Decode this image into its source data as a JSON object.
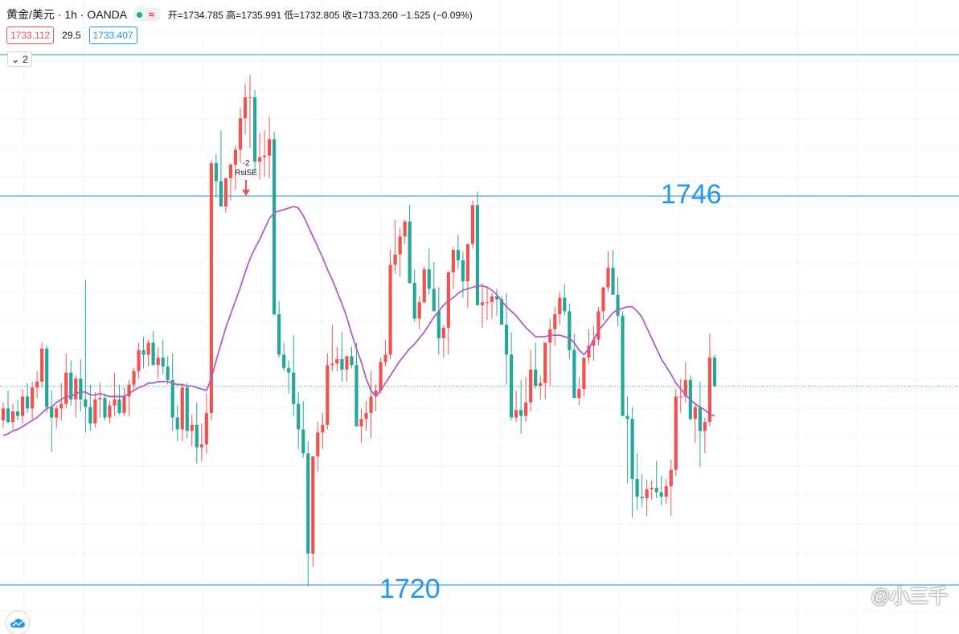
{
  "header": {
    "symbol": "黄金/美元 · 1h · OANDA",
    "approx_icon": "≈",
    "ohlc_text": "开=1734.785 高=1735.991 低=1732.805 收=1733.260 −1.525 (−0.09%)"
  },
  "quotes": {
    "bid": "1733.112",
    "spread": "29.5",
    "ask": "1733.407"
  },
  "collapse_count": "2",
  "annotations": {
    "level_high": "1746",
    "level_low": "1720",
    "signal_count": "-2",
    "signal_name": "RsiSE"
  },
  "watermark": "@小三千",
  "colors": {
    "up": "#ef5350",
    "down": "#26a69a",
    "ma": "#b05ec5",
    "line": "#1e88e5"
  },
  "chart_data": {
    "type": "candlestick",
    "levels": [
      1746,
      1720
    ],
    "candles_ohlc": [
      [
        1731.0,
        1732.2,
        1730.5,
        1731.8
      ],
      [
        1731.8,
        1733.0,
        1730.8,
        1730.9
      ],
      [
        1730.9,
        1732.1,
        1730.4,
        1731.6
      ],
      [
        1731.6,
        1732.4,
        1731.0,
        1731.3
      ],
      [
        1731.3,
        1733.1,
        1730.8,
        1732.6
      ],
      [
        1732.6,
        1733.5,
        1731.5,
        1731.8
      ],
      [
        1731.8,
        1733.6,
        1731.1,
        1733.2
      ],
      [
        1733.2,
        1734.3,
        1732.5,
        1733.6
      ],
      [
        1733.6,
        1736.2,
        1733.2,
        1735.8
      ],
      [
        1735.8,
        1736.0,
        1731.5,
        1731.9
      ],
      [
        1731.9,
        1733.0,
        1728.9,
        1731.2
      ],
      [
        1731.2,
        1732.0,
        1730.5,
        1731.8
      ],
      [
        1731.8,
        1733.5,
        1731.0,
        1732.1
      ],
      [
        1732.1,
        1735.5,
        1731.8,
        1734.2
      ],
      [
        1734.2,
        1735.0,
        1732.0,
        1732.4
      ],
      [
        1732.4,
        1734.0,
        1731.2,
        1733.8
      ],
      [
        1733.8,
        1735.1,
        1731.6,
        1732.4
      ],
      [
        1732.4,
        1740.4,
        1730.2,
        1731.9
      ],
      [
        1731.9,
        1733.4,
        1730.3,
        1730.8
      ],
      [
        1730.8,
        1732.9,
        1730.5,
        1732.4
      ],
      [
        1732.4,
        1733.5,
        1731.2,
        1732.5
      ],
      [
        1732.5,
        1732.8,
        1731.0,
        1731.2
      ],
      [
        1731.2,
        1732.3,
        1730.8,
        1732.0
      ],
      [
        1732.0,
        1734.2,
        1731.3,
        1732.4
      ],
      [
        1732.4,
        1733.4,
        1731.4,
        1731.5
      ],
      [
        1731.5,
        1733.2,
        1731.3,
        1732.6
      ],
      [
        1732.6,
        1733.7,
        1731.3,
        1733.4
      ],
      [
        1733.4,
        1734.5,
        1733.0,
        1734.3
      ],
      [
        1734.3,
        1736.2,
        1733.8,
        1735.7
      ],
      [
        1735.7,
        1736.6,
        1734.5,
        1735.4
      ],
      [
        1735.4,
        1736.4,
        1734.6,
        1736.2
      ],
      [
        1736.2,
        1737.0,
        1734.9,
        1734.7
      ],
      [
        1734.7,
        1735.9,
        1733.8,
        1735.2
      ],
      [
        1735.2,
        1736.4,
        1734.1,
        1734.6
      ],
      [
        1734.6,
        1735.3,
        1733.4,
        1733.7
      ],
      [
        1733.7,
        1735.5,
        1730.3,
        1731.2
      ],
      [
        1731.2,
        1732.0,
        1729.6,
        1730.4
      ],
      [
        1730.4,
        1733.4,
        1729.6,
        1733.2
      ],
      [
        1733.2,
        1733.5,
        1729.8,
        1730.3
      ],
      [
        1730.3,
        1731.4,
        1729.3,
        1730.7
      ],
      [
        1730.7,
        1732.2,
        1728.1,
        1729.2
      ],
      [
        1729.2,
        1730.8,
        1728.3,
        1729.4
      ],
      [
        1729.4,
        1732.8,
        1728.8,
        1731.5
      ],
      [
        1731.5,
        1748.4,
        1731.0,
        1748.2
      ],
      [
        1748.2,
        1748.8,
        1745.9,
        1747.0
      ],
      [
        1747.0,
        1750.4,
        1745.8,
        1745.3
      ],
      [
        1745.3,
        1746.8,
        1744.9,
        1747.2
      ],
      [
        1747.2,
        1748.2,
        1745.7,
        1748.1
      ],
      [
        1748.1,
        1749.4,
        1746.4,
        1749.1
      ],
      [
        1749.1,
        1751.9,
        1748.2,
        1751.2
      ],
      [
        1751.2,
        1753.5,
        1750.1,
        1752.6
      ],
      [
        1752.6,
        1754.1,
        1749.2,
        1752.6
      ],
      [
        1752.6,
        1753.1,
        1747.6,
        1748.3
      ],
      [
        1748.3,
        1750.2,
        1747.1,
        1748.6
      ],
      [
        1748.6,
        1750.4,
        1747.3,
        1748.7
      ],
      [
        1748.7,
        1751.3,
        1747.2,
        1749.8
      ],
      [
        1749.8,
        1750.3,
        1738.0,
        1738.1
      ],
      [
        1738.1,
        1739.0,
        1735.2,
        1735.4
      ],
      [
        1735.4,
        1736.2,
        1734.3,
        1734.5
      ],
      [
        1734.5,
        1735.0,
        1732.8,
        1734.2
      ],
      [
        1734.2,
        1736.7,
        1731.3,
        1732.1
      ],
      [
        1732.1,
        1732.9,
        1729.1,
        1730.4
      ],
      [
        1730.4,
        1732.3,
        1728.5,
        1728.8
      ],
      [
        1728.8,
        1729.6,
        1719.9,
        1722.1
      ],
      [
        1722.1,
        1728.6,
        1721.2,
        1728.6
      ],
      [
        1728.6,
        1730.9,
        1727.6,
        1730.2
      ],
      [
        1730.2,
        1731.5,
        1729.1,
        1730.7
      ],
      [
        1730.7,
        1735.5,
        1730.4,
        1734.7
      ],
      [
        1734.7,
        1737.4,
        1734.3,
        1734.8
      ],
      [
        1734.8,
        1735.9,
        1734.3,
        1735.1
      ],
      [
        1735.1,
        1736.9,
        1733.6,
        1734.4
      ],
      [
        1734.4,
        1735.2,
        1733.6,
        1735.3
      ],
      [
        1735.3,
        1735.9,
        1734.5,
        1734.7
      ],
      [
        1734.7,
        1736.2,
        1733.3,
        1730.6
      ],
      [
        1730.6,
        1731.8,
        1729.5,
        1731.1
      ],
      [
        1731.1,
        1732.3,
        1730.3,
        1731.5
      ],
      [
        1731.5,
        1734.3,
        1729.8,
        1732.6
      ],
      [
        1732.6,
        1733.4,
        1731.6,
        1733.0
      ],
      [
        1733.0,
        1735.2,
        1732.8,
        1734.9
      ],
      [
        1734.9,
        1736.4,
        1734.6,
        1735.4
      ],
      [
        1735.4,
        1742.4,
        1735.1,
        1741.4
      ],
      [
        1741.4,
        1744.4,
        1740.8,
        1742.1
      ],
      [
        1742.1,
        1743.9,
        1740.6,
        1743.3
      ],
      [
        1743.3,
        1744.4,
        1742.8,
        1744.3
      ],
      [
        1744.3,
        1745.4,
        1740.1,
        1740.2
      ],
      [
        1740.2,
        1741.1,
        1737.6,
        1737.8
      ],
      [
        1737.8,
        1739.3,
        1737.1,
        1738.9
      ],
      [
        1738.9,
        1741.3,
        1738.8,
        1741.1
      ],
      [
        1741.1,
        1742.5,
        1739.4,
        1739.8
      ],
      [
        1739.8,
        1741.6,
        1739.1,
        1738.3
      ],
      [
        1738.3,
        1739.9,
        1735.4,
        1736.5
      ],
      [
        1736.5,
        1737.4,
        1735.2,
        1737.2
      ],
      [
        1737.2,
        1741.0,
        1735.4,
        1740.9
      ],
      [
        1740.9,
        1742.6,
        1739.8,
        1742.4
      ],
      [
        1742.4,
        1743.4,
        1741.1,
        1741.7
      ],
      [
        1741.7,
        1742.3,
        1739.2,
        1740.3
      ],
      [
        1740.3,
        1741.3,
        1738.5,
        1742.8
      ],
      [
        1742.8,
        1745.7,
        1742.5,
        1745.4
      ],
      [
        1745.4,
        1746.3,
        1743.4,
        1738.7
      ],
      [
        1738.7,
        1740.2,
        1737.2,
        1738.9
      ],
      [
        1738.9,
        1740.0,
        1737.7,
        1738.9
      ],
      [
        1738.9,
        1739.5,
        1737.8,
        1739.3
      ],
      [
        1739.3,
        1739.8,
        1738.0,
        1739.1
      ],
      [
        1739.1,
        1739.3,
        1737.4,
        1737.4
      ],
      [
        1737.4,
        1739.5,
        1733.4,
        1735.4
      ],
      [
        1735.4,
        1736.9,
        1731.0,
        1731.2
      ],
      [
        1731.2,
        1733.0,
        1730.9,
        1731.7
      ],
      [
        1731.7,
        1733.7,
        1730.1,
        1731.3
      ],
      [
        1731.3,
        1733.9,
        1730.9,
        1732.2
      ],
      [
        1732.2,
        1735.7,
        1731.6,
        1734.4
      ],
      [
        1734.4,
        1736.2,
        1733.1,
        1733.3
      ],
      [
        1733.3,
        1734.0,
        1732.4,
        1733.5
      ],
      [
        1733.5,
        1734.7,
        1732.4,
        1736.2
      ],
      [
        1736.2,
        1737.8,
        1733.3,
        1737.1
      ],
      [
        1737.1,
        1738.6,
        1736.0,
        1738.1
      ],
      [
        1738.1,
        1739.6,
        1737.4,
        1739.2
      ],
      [
        1739.2,
        1740.1,
        1738.0,
        1738.3
      ],
      [
        1738.3,
        1738.8,
        1735.1,
        1735.7
      ],
      [
        1735.7,
        1736.8,
        1733.9,
        1732.5
      ],
      [
        1732.5,
        1733.9,
        1732.0,
        1733.1
      ],
      [
        1733.1,
        1734.6,
        1732.6,
        1735.2
      ],
      [
        1735.2,
        1737.1,
        1734.8,
        1736.0
      ],
      [
        1736.0,
        1737.3,
        1735.0,
        1736.4
      ],
      [
        1736.4,
        1738.6,
        1736.0,
        1738.3
      ],
      [
        1738.3,
        1739.6,
        1737.7,
        1739.9
      ],
      [
        1739.9,
        1742.3,
        1739.6,
        1741.2
      ],
      [
        1741.2,
        1742.4,
        1739.9,
        1739.4
      ],
      [
        1739.4,
        1740.6,
        1737.3,
        1738.0
      ],
      [
        1738.0,
        1738.3,
        1732.2,
        1731.3
      ],
      [
        1731.3,
        1732.6,
        1726.8,
        1731.1
      ],
      [
        1731.1,
        1731.9,
        1724.5,
        1727.1
      ],
      [
        1727.1,
        1728.8,
        1725.0,
        1725.9
      ],
      [
        1725.9,
        1727.4,
        1725.2,
        1725.8
      ],
      [
        1725.8,
        1727.0,
        1724.6,
        1726.4
      ],
      [
        1726.4,
        1727.0,
        1725.7,
        1726.5
      ],
      [
        1726.5,
        1728.3,
        1725.8,
        1726.2
      ],
      [
        1726.2,
        1727.3,
        1725.3,
        1725.9
      ],
      [
        1725.9,
        1727.1,
        1725.4,
        1726.6
      ],
      [
        1726.6,
        1728.4,
        1724.6,
        1727.7
      ],
      [
        1727.7,
        1733.1,
        1727.3,
        1732.6
      ],
      [
        1732.6,
        1733.8,
        1731.5,
        1732.6
      ],
      [
        1732.6,
        1734.9,
        1732.2,
        1733.7
      ],
      [
        1733.7,
        1734.0,
        1731.0,
        1731.1
      ],
      [
        1731.1,
        1732.2,
        1729.5,
        1731.9
      ],
      [
        1731.9,
        1733.6,
        1727.9,
        1730.3
      ],
      [
        1730.3,
        1731.2,
        1728.8,
        1730.9
      ],
      [
        1730.9,
        1736.8,
        1730.6,
        1735.2
      ],
      [
        1735.2,
        1735.4,
        1733.2,
        1733.3
      ]
    ],
    "ma": [
      1730.0,
      1730.1,
      1730.3,
      1730.4,
      1730.6,
      1730.8,
      1731.0,
      1731.2,
      1731.5,
      1731.8,
      1731.9,
      1732.2,
      1732.4,
      1732.6,
      1732.6,
      1732.8,
      1732.9,
      1732.9,
      1732.7,
      1732.7,
      1732.8,
      1732.7,
      1732.6,
      1732.6,
      1732.6,
      1732.6,
      1732.8,
      1733.0,
      1733.2,
      1733.3,
      1733.5,
      1733.5,
      1733.6,
      1733.6,
      1733.6,
      1733.5,
      1733.4,
      1733.4,
      1733.3,
      1733.3,
      1733.2,
      1733.1,
      1733.0,
      1733.8,
      1735.0,
      1736.1,
      1737.2,
      1738.1,
      1739.0,
      1739.9,
      1740.9,
      1741.8,
      1742.5,
      1743.1,
      1743.8,
      1744.5,
      1744.9,
      1745.0,
      1745.1,
      1745.2,
      1745.3,
      1745.2,
      1744.7,
      1744.0,
      1743.3,
      1742.6,
      1741.9,
      1741.1,
      1740.4,
      1739.6,
      1738.8,
      1737.9,
      1736.8,
      1735.8,
      1734.9,
      1733.8,
      1733.0,
      1732.6,
      1733.0,
      1733.5,
      1734.0,
      1734.5,
      1735.0,
      1735.4,
      1735.8,
      1736.1,
      1736.5,
      1736.9,
      1737.4,
      1737.9,
      1738.3,
      1738.7,
      1739.0,
      1739.2,
      1739.5,
      1739.7,
      1739.8,
      1739.9,
      1740.0,
      1740.0,
      1739.9,
      1739.7,
      1739.4,
      1739.0,
      1738.6,
      1738.3,
      1738.0,
      1737.6,
      1737.2,
      1736.9,
      1736.6,
      1736.6,
      1736.6,
      1736.7,
      1736.7,
      1736.7,
      1736.6,
      1736.5,
      1736.2,
      1735.7,
      1735.4,
      1735.8,
      1736.4,
      1737.0,
      1737.4,
      1737.8,
      1738.2,
      1738.4,
      1738.5,
      1738.6,
      1738.6,
      1738.3,
      1737.9,
      1737.2,
      1736.5,
      1735.8,
      1735.1,
      1734.6,
      1734.1,
      1733.5,
      1733.1,
      1732.7,
      1732.4,
      1732.1,
      1731.9,
      1731.7,
      1731.4,
      1731.3
    ]
  }
}
